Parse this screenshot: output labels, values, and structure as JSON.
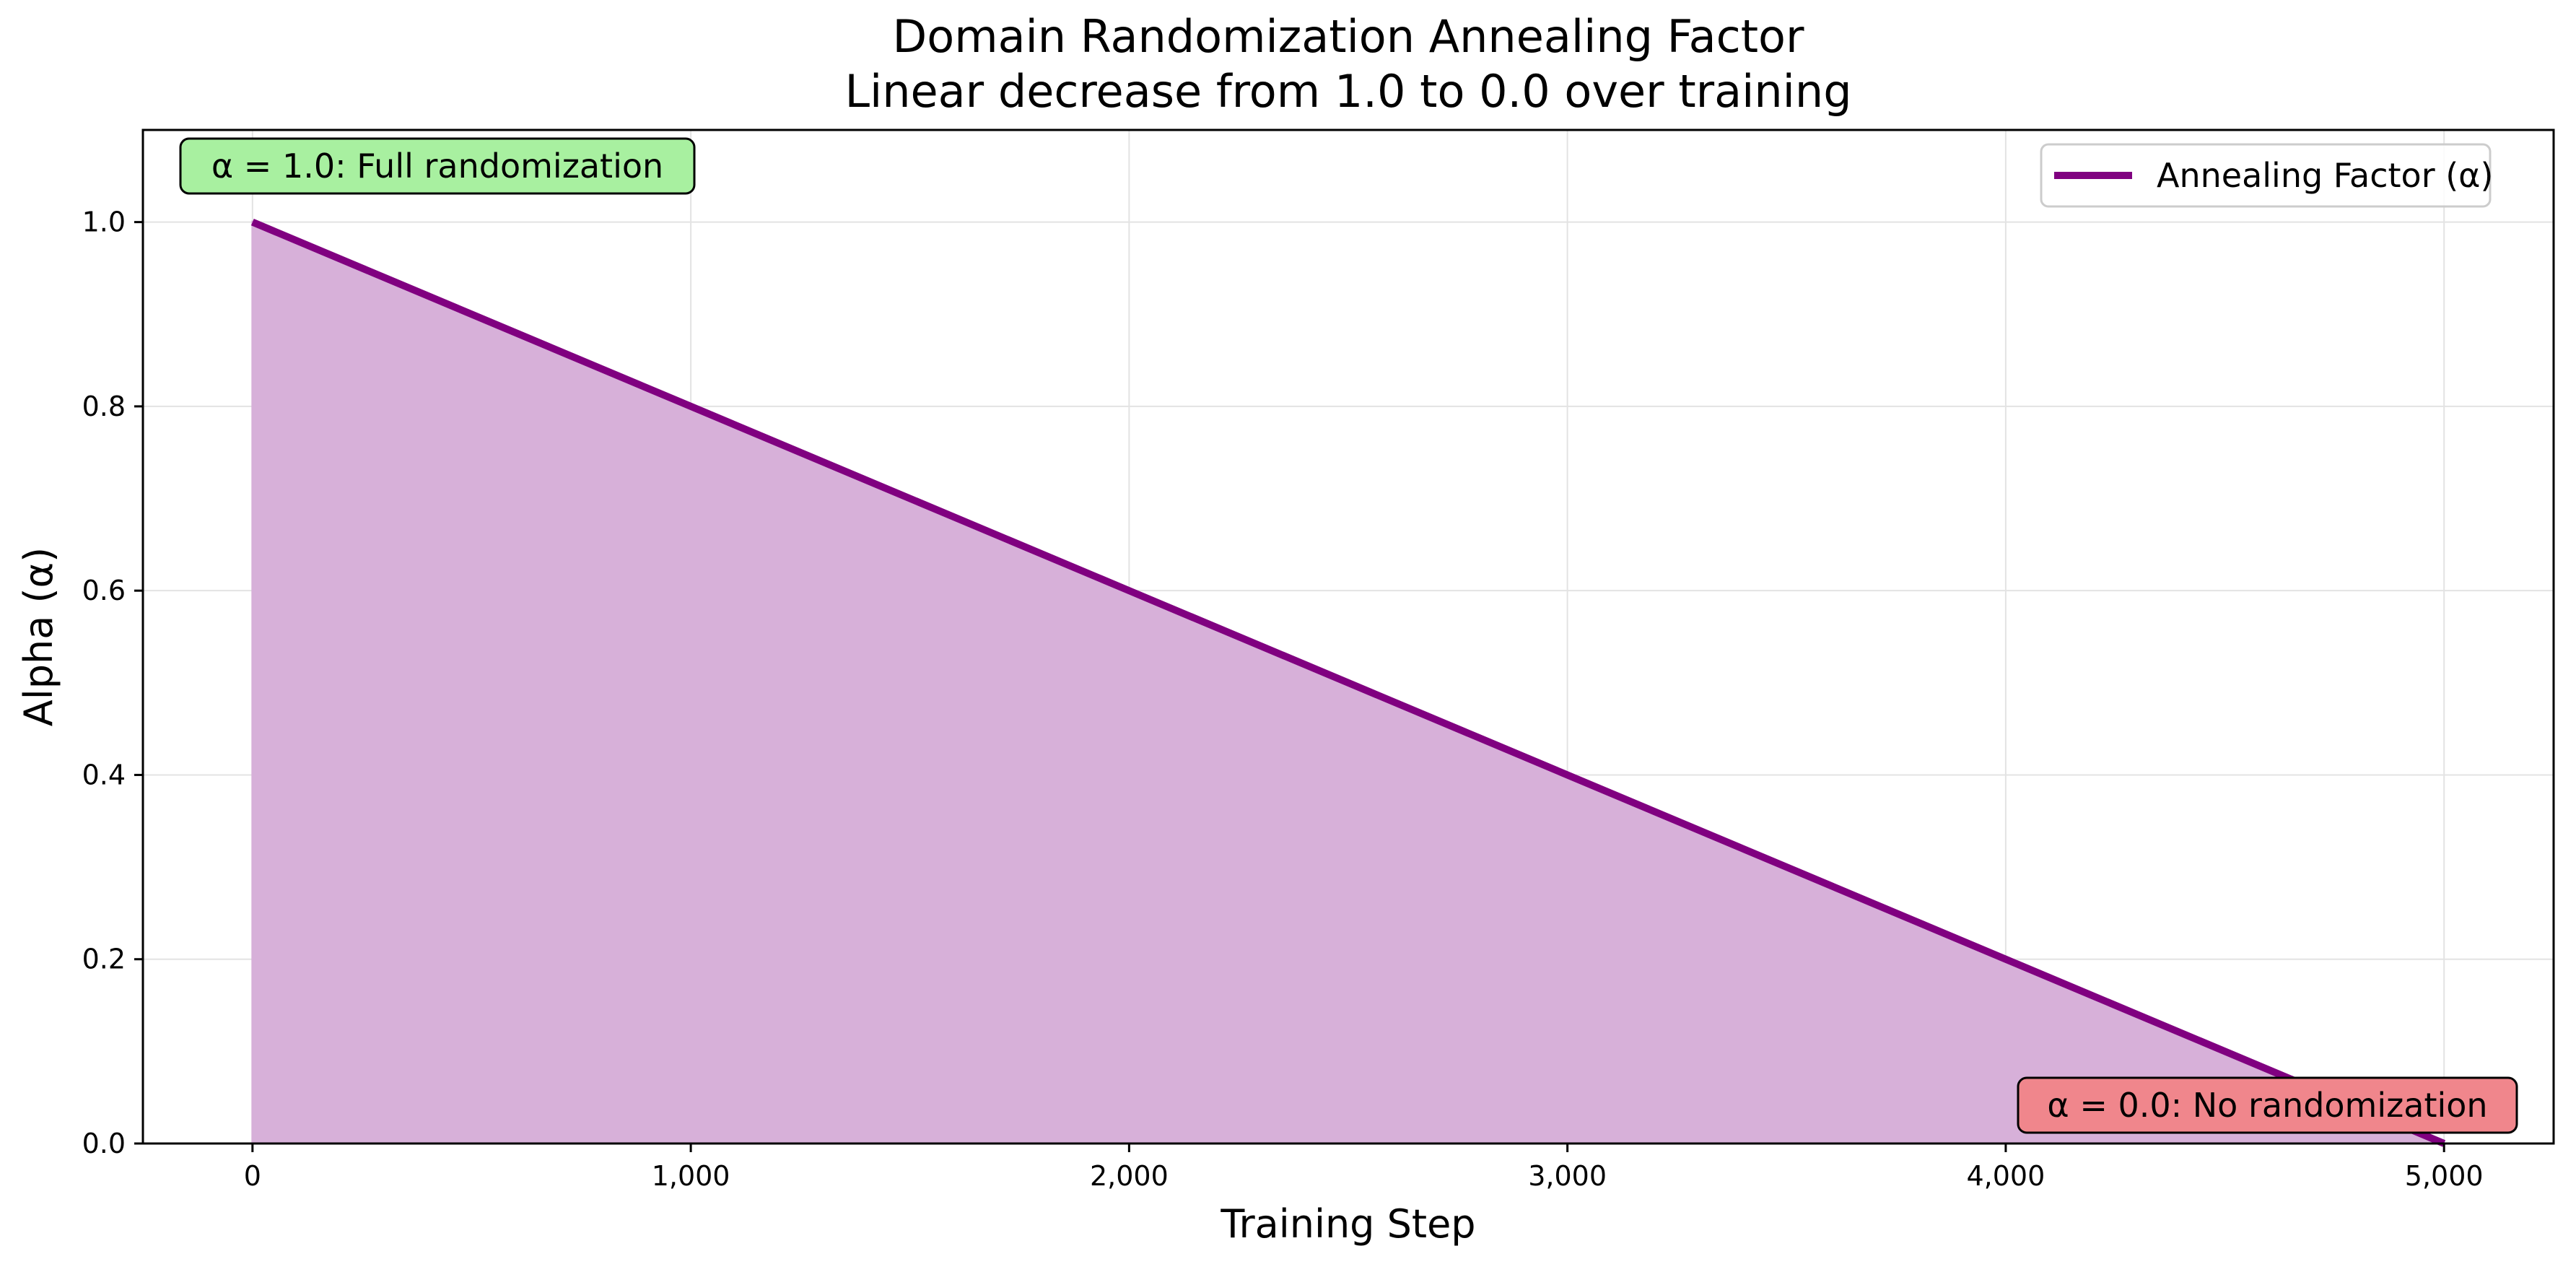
{
  "chart_data": {
    "type": "area",
    "title": "Domain Randomization Annealing Factor",
    "subtitle": "Linear decrease from 1.0 to 0.0 over training",
    "xlabel": "Training Step",
    "ylabel": "Alpha (α)",
    "xlim": [
      -250,
      5250
    ],
    "ylim": [
      0.0,
      1.1
    ],
    "xticks": [
      0,
      1000,
      2000,
      3000,
      4000,
      5000
    ],
    "xtick_labels": [
      "0",
      "1,000",
      "2,000",
      "3,000",
      "4,000",
      "5,000"
    ],
    "yticks": [
      0.0,
      0.2,
      0.4,
      0.6,
      0.8,
      1.0
    ],
    "ytick_labels": [
      "0.0",
      "0.2",
      "0.4",
      "0.6",
      "0.8",
      "1.0"
    ],
    "grid": true,
    "legend_position": "top-right",
    "series": [
      {
        "name": "Annealing Factor (α)",
        "color": "#800080",
        "fill_color": "#d7b0d9",
        "x": [
          0,
          1000,
          2000,
          3000,
          4000,
          5000
        ],
        "y": [
          1.0,
          0.8,
          0.6,
          0.4,
          0.2,
          0.0
        ]
      }
    ],
    "annotations": [
      {
        "text": "α = 1.0: Full randomization",
        "position": "top-left",
        "background": "#a8f0a0"
      },
      {
        "text": "α = 0.0: No randomization",
        "position": "bottom-right",
        "background": "#f0868c"
      }
    ]
  }
}
